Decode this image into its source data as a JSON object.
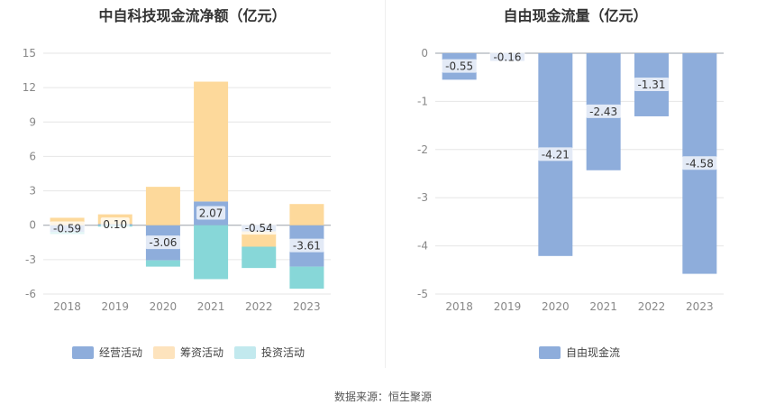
{
  "footer": {
    "source": "数据来源：恒生聚源"
  },
  "chart_data": [
    {
      "type": "bar",
      "stacked": true,
      "title": "中自科技现金流净额（亿元）",
      "categories": [
        "2018",
        "2019",
        "2020",
        "2021",
        "2022",
        "2023"
      ],
      "ylim": [
        -6,
        15
      ],
      "yticks": [
        -6,
        -3,
        0,
        3,
        6,
        9,
        12,
        15
      ],
      "series": [
        {
          "name": "经营活动",
          "color": "#8eaddb",
          "values": [
            -0.59,
            0.1,
            -3.06,
            2.07,
            -0.54,
            -3.61
          ],
          "labels": [
            "-0.59",
            "0.10",
            "-3.06",
            "2.07",
            "-0.54",
            "-3.61"
          ]
        },
        {
          "name": "筹资活动",
          "color": "#fdd99b",
          "values": [
            0.65,
            0.85,
            3.35,
            10.45,
            -1.33,
            1.85
          ]
        },
        {
          "name": "投资活动",
          "color": "#87d7d8",
          "values": [
            -0.18,
            -0.12,
            -0.55,
            -4.7,
            -1.86,
            -1.92
          ]
        }
      ],
      "legend_colors": [
        "#8eaddb",
        "#fde3bd",
        "#c2e9ee"
      ],
      "legend": "bottom"
    },
    {
      "type": "bar",
      "title": "自由现金流量（亿元）",
      "categories": [
        "2018",
        "2019",
        "2020",
        "2021",
        "2022",
        "2023"
      ],
      "ylim": [
        -5,
        0
      ],
      "yticks": [
        -5,
        -4,
        -3,
        -2,
        -1,
        0
      ],
      "series": [
        {
          "name": "自由现金流",
          "color": "#8eaddb",
          "values": [
            -0.55,
            -0.16,
            -4.21,
            -2.43,
            -1.31,
            -4.58
          ],
          "labels": [
            "-0.55",
            "-0.16",
            "-4.21",
            "-2.43",
            "-1.31",
            "-4.58"
          ]
        }
      ],
      "legend": "bottom"
    }
  ]
}
